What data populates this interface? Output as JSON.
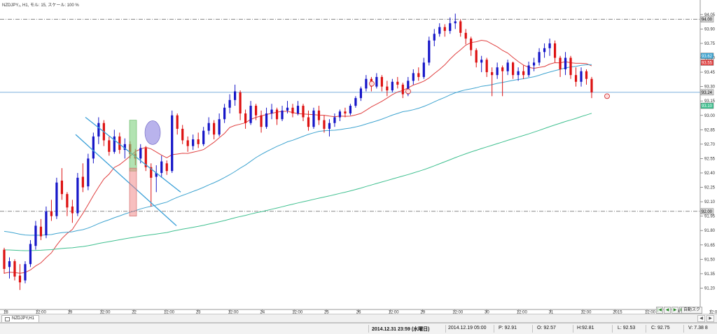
{
  "title": "NZDJPY₂, H1, モル: 15, スケール: 100 %",
  "chart_data": {
    "type": "candlestick",
    "symbol": "NZDJPY",
    "timeframe": "H1",
    "ylim": [
      91.05,
      94.1
    ],
    "y_ticks": [
      "94.05",
      "93.90",
      "93.75",
      "93.60",
      "93.45",
      "93.30",
      "93.15",
      "93.00",
      "92.85",
      "92.70",
      "92.55",
      "92.40",
      "92.25",
      "92.10",
      "91.95",
      "91.80",
      "91.65",
      "91.50",
      "91.35",
      "91.20"
    ],
    "x_ticks": [
      "18",
      "12:00",
      "19",
      "12:00",
      "22",
      "12:00",
      "23",
      "12:00",
      "24",
      "12:00",
      "25",
      "26",
      "12:00",
      "29",
      "12:00",
      "30",
      "12:00",
      "31",
      "12:00",
      "2015",
      "12:00",
      "2",
      "12:00"
    ],
    "price_labels": {
      "upper_line": "94.00",
      "lower_line": "92.00",
      "ma_a": "93.62",
      "ma_b": "93.55",
      "current_price": "93.24",
      "ma_c": "93.10"
    },
    "horizontal_lines": [
      {
        "y": 94.0,
        "style": "dash-dot"
      },
      {
        "y": 92.0,
        "style": "dash-dot"
      },
      {
        "y": 93.24,
        "style": "solid"
      }
    ],
    "series": [
      {
        "type": "candlestick",
        "colors": {
          "up": "#1515c8",
          "down": "#dd1111"
        },
        "ohlc": [
          [
            91.6,
            91.62,
            91.35,
            91.4
          ],
          [
            91.42,
            91.52,
            91.3,
            91.48
          ],
          [
            91.48,
            91.5,
            91.28,
            91.32
          ],
          [
            91.33,
            91.45,
            91.18,
            91.26
          ],
          [
            91.28,
            91.48,
            91.25,
            91.45
          ],
          [
            91.45,
            91.7,
            91.42,
            91.66
          ],
          [
            91.64,
            91.9,
            91.6,
            91.85
          ],
          [
            91.84,
            91.92,
            91.7,
            91.74
          ],
          [
            91.75,
            92.05,
            91.72,
            92.0
          ],
          [
            92.0,
            92.12,
            91.9,
            91.95
          ],
          [
            91.95,
            92.35,
            91.92,
            92.3
          ],
          [
            92.32,
            92.45,
            92.12,
            92.18
          ],
          [
            92.18,
            92.2,
            91.95,
            92.04
          ],
          [
            92.05,
            92.12,
            91.88,
            91.98
          ],
          [
            91.98,
            92.4,
            91.95,
            92.35
          ],
          [
            92.36,
            92.5,
            92.2,
            92.25
          ],
          [
            92.26,
            92.6,
            92.22,
            92.55
          ],
          [
            92.55,
            92.82,
            92.5,
            92.78
          ],
          [
            92.78,
            92.98,
            92.7,
            92.92
          ],
          [
            92.92,
            92.95,
            92.68,
            92.74
          ],
          [
            92.74,
            92.78,
            92.58,
            92.62
          ],
          [
            92.62,
            92.85,
            92.6,
            92.78
          ],
          [
            92.78,
            92.82,
            92.6,
            92.64
          ],
          [
            92.64,
            92.76,
            92.55,
            92.7
          ],
          [
            92.7,
            92.73,
            92.55,
            92.6
          ],
          [
            92.6,
            92.65,
            92.48,
            92.55
          ],
          [
            92.55,
            92.7,
            92.5,
            92.66
          ],
          [
            92.66,
            92.68,
            92.42,
            92.46
          ],
          [
            92.46,
            92.5,
            92.05,
            92.35
          ],
          [
            92.36,
            92.48,
            92.2,
            92.4
          ],
          [
            92.4,
            92.58,
            92.35,
            92.52
          ],
          [
            92.5,
            92.53,
            92.38,
            92.42
          ],
          [
            92.42,
            93.05,
            92.4,
            93.0
          ],
          [
            93.0,
            93.02,
            92.8,
            92.86
          ],
          [
            92.86,
            92.9,
            92.7,
            92.74
          ],
          [
            92.74,
            92.78,
            92.62,
            92.68
          ],
          [
            92.68,
            92.8,
            92.64,
            92.75
          ],
          [
            92.75,
            92.82,
            92.66,
            92.7
          ],
          [
            92.7,
            92.88,
            92.68,
            92.84
          ],
          [
            92.84,
            92.98,
            92.8,
            92.92
          ],
          [
            92.92,
            92.95,
            92.75,
            92.8
          ],
          [
            92.8,
            93.02,
            92.78,
            92.96
          ],
          [
            92.96,
            93.12,
            92.92,
            93.08
          ],
          [
            93.08,
            93.22,
            93.02,
            93.16
          ],
          [
            93.16,
            93.32,
            93.1,
            93.25
          ],
          [
            93.24,
            93.26,
            92.95,
            93.02
          ],
          [
            93.02,
            93.06,
            92.86,
            92.92
          ],
          [
            92.92,
            93.15,
            92.9,
            93.1
          ],
          [
            93.1,
            93.12,
            92.95,
            93.0
          ],
          [
            93.0,
            93.05,
            92.82,
            92.88
          ],
          [
            92.88,
            93.08,
            92.86,
            93.02
          ],
          [
            93.02,
            93.12,
            92.96,
            93.06
          ],
          [
            93.06,
            93.08,
            92.9,
            92.96
          ],
          [
            92.96,
            93.1,
            92.94,
            93.05
          ],
          [
            93.05,
            93.15,
            93.02,
            93.08
          ],
          [
            93.08,
            93.12,
            92.98,
            93.02
          ],
          [
            93.02,
            93.15,
            93.0,
            93.1
          ],
          [
            93.1,
            93.12,
            92.94,
            92.98
          ],
          [
            92.98,
            93.05,
            92.84,
            92.88
          ],
          [
            92.88,
            93.08,
            92.86,
            93.05
          ],
          [
            93.05,
            93.1,
            92.9,
            92.95
          ],
          [
            92.95,
            93.0,
            92.82,
            92.86
          ],
          [
            92.86,
            92.96,
            92.78,
            92.92
          ],
          [
            92.92,
            93.02,
            92.88,
            92.98
          ],
          [
            92.98,
            93.06,
            92.94,
            93.04
          ],
          [
            93.04,
            93.08,
            92.98,
            93.02
          ],
          [
            93.02,
            93.12,
            93.0,
            93.1
          ],
          [
            93.1,
            93.2,
            93.08,
            93.18
          ],
          [
            93.18,
            93.3,
            93.15,
            93.28
          ],
          [
            93.28,
            93.42,
            93.25,
            93.38
          ],
          [
            93.38,
            93.4,
            93.25,
            93.3
          ],
          [
            93.3,
            93.44,
            93.28,
            93.4
          ],
          [
            93.4,
            93.42,
            93.25,
            93.3
          ],
          [
            93.3,
            93.36,
            93.2,
            93.26
          ],
          [
            93.26,
            93.38,
            93.24,
            93.35
          ],
          [
            93.35,
            93.4,
            93.28,
            93.32
          ],
          [
            93.32,
            93.34,
            93.18,
            93.22
          ],
          [
            93.22,
            93.4,
            93.2,
            93.36
          ],
          [
            93.36,
            93.48,
            93.32,
            93.44
          ],
          [
            93.44,
            93.5,
            93.36,
            93.4
          ],
          [
            93.4,
            93.6,
            93.38,
            93.55
          ],
          [
            93.55,
            93.82,
            93.52,
            93.78
          ],
          [
            93.78,
            93.9,
            93.72,
            93.85
          ],
          [
            93.85,
            93.96,
            93.82,
            93.92
          ],
          [
            93.92,
            93.95,
            93.82,
            93.88
          ],
          [
            93.88,
            94.02,
            93.85,
            93.96
          ],
          [
            93.96,
            94.06,
            93.9,
            93.98
          ],
          [
            93.98,
            94.0,
            93.82,
            93.86
          ],
          [
            93.86,
            93.9,
            93.74,
            93.8
          ],
          [
            93.8,
            93.82,
            93.62,
            93.68
          ],
          [
            93.68,
            93.7,
            93.5,
            93.55
          ],
          [
            93.55,
            93.62,
            93.45,
            93.58
          ],
          [
            93.58,
            93.6,
            93.4,
            93.45
          ],
          [
            93.45,
            93.5,
            93.2,
            93.42
          ],
          [
            93.42,
            93.55,
            93.38,
            93.5
          ],
          [
            93.5,
            93.52,
            93.2,
            93.46
          ],
          [
            93.46,
            93.58,
            93.42,
            93.55
          ],
          [
            93.55,
            93.56,
            93.38,
            93.42
          ],
          [
            93.42,
            93.5,
            93.36,
            93.46
          ],
          [
            93.46,
            93.52,
            93.38,
            93.42
          ],
          [
            93.42,
            93.56,
            93.4,
            93.52
          ],
          [
            93.52,
            93.6,
            93.46,
            93.55
          ],
          [
            93.55,
            93.7,
            93.52,
            93.66
          ],
          [
            93.66,
            93.75,
            93.6,
            93.7
          ],
          [
            93.7,
            93.8,
            93.62,
            93.75
          ],
          [
            93.75,
            93.78,
            93.55,
            93.6
          ],
          [
            93.6,
            93.62,
            93.4,
            93.48
          ],
          [
            93.48,
            93.66,
            93.42,
            93.6
          ],
          [
            93.6,
            93.62,
            93.38,
            93.42
          ],
          [
            93.42,
            93.5,
            93.3,
            93.35
          ],
          [
            93.35,
            93.5,
            93.3,
            93.46
          ],
          [
            93.46,
            93.48,
            93.32,
            93.38
          ],
          [
            93.38,
            93.4,
            93.18,
            93.24
          ]
        ]
      },
      {
        "type": "line",
        "color": "#e04040",
        "role": "fast MA"
      },
      {
        "type": "line",
        "color": "#3fa4d0",
        "role": "medium MA"
      },
      {
        "type": "line",
        "color": "#40c090",
        "role": "slow MA"
      }
    ],
    "annotations": [
      {
        "type": "trendline",
        "color": "#3aa0d8"
      },
      {
        "type": "trendline",
        "color": "#3aa0d8"
      },
      {
        "type": "rectangle",
        "color": "#7ed07e"
      },
      {
        "type": "rectangle",
        "color": "#f08080"
      },
      {
        "type": "ellipse",
        "color": "#8a80e0"
      },
      {
        "type": "marker",
        "name": "thumb-icon"
      },
      {
        "type": "marker",
        "name": "thumb-icon"
      },
      {
        "type": "marker",
        "name": "thumb-icon"
      }
    ]
  },
  "tab": {
    "label": "NZDJPY,H1"
  },
  "tab_icon": "chart-window-icon",
  "tab_nav": [
    "◀",
    "▶"
  ],
  "nav_controls": [
    "|◀",
    "◀",
    "▶",
    "▶|"
  ],
  "zoom_label": "自動スク",
  "status": {
    "current_time": "2014.12.31 23:59 (水曜日)",
    "bar_time": "2014.12.19 05:00",
    "p": "P: 92.91",
    "o": "O: 92.57",
    "h": "H:92.81",
    "l": "L: 92.53",
    "c": "C: 92.75",
    "v": "V: 7.38 8"
  }
}
